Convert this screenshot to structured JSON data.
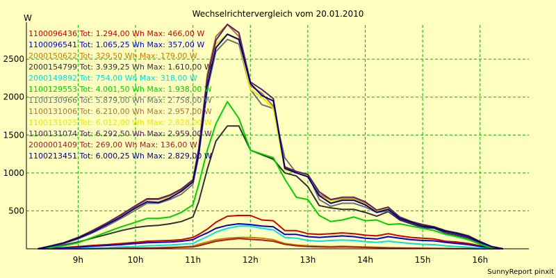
{
  "chart_data": {
    "type": "line",
    "title": "Wechselrichtervergleich vom 20.01.2010",
    "ylabel": "W",
    "xlabel": "",
    "credit": "SunnyReport pinxit",
    "grid": true,
    "ylim": [
      0,
      2950
    ],
    "xlim": [
      8.1,
      16.85
    ],
    "y_ticks": [
      500,
      1000,
      1500,
      2000,
      2500
    ],
    "x_ticks": [
      {
        "label": "9h",
        "value": 9
      },
      {
        "label": "10h",
        "value": 10
      },
      {
        "label": "11h",
        "value": 11
      },
      {
        "label": "12h",
        "value": 12
      },
      {
        "label": "13h",
        "value": 13
      },
      {
        "label": "14h",
        "value": 14
      },
      {
        "label": "15h",
        "value": 15
      },
      {
        "label": "16h",
        "value": 16
      }
    ],
    "x": [
      8.3,
      8.5,
      8.75,
      9.0,
      9.25,
      9.5,
      9.75,
      10.0,
      10.2,
      10.4,
      10.6,
      10.8,
      11.0,
      11.1,
      11.25,
      11.4,
      11.6,
      11.8,
      12.0,
      12.2,
      12.4,
      12.6,
      12.8,
      13.0,
      13.2,
      13.4,
      13.6,
      13.8,
      14.0,
      14.2,
      14.4,
      14.6,
      14.8,
      15.0,
      15.2,
      15.4,
      15.6,
      15.8,
      16.0,
      16.2,
      16.4
    ],
    "series": [
      {
        "name": "1100096436",
        "legend": "1100096436 Tot: 1.294,00 Wh Max: 466,00 W",
        "color": "#cc0000",
        "values": [
          0,
          5,
          15,
          30,
          45,
          55,
          70,
          85,
          100,
          105,
          110,
          120,
          150,
          190,
          260,
          350,
          430,
          440,
          440,
          380,
          370,
          240,
          240,
          200,
          190,
          200,
          210,
          200,
          180,
          170,
          200,
          170,
          150,
          140,
          130,
          100,
          90,
          70,
          40,
          10,
          0
        ]
      },
      {
        "name": "1100096541",
        "legend": "1100096541 Tot: 1.065,25 Wh Max: 357,00 W",
        "color": "#0000cc",
        "values": [
          0,
          3,
          10,
          20,
          35,
          45,
          55,
          70,
          80,
          85,
          90,
          100,
          120,
          160,
          210,
          270,
          310,
          330,
          320,
          300,
          290,
          190,
          190,
          160,
          150,
          160,
          170,
          160,
          140,
          130,
          160,
          140,
          120,
          110,
          105,
          85,
          70,
          55,
          30,
          8,
          0
        ]
      },
      {
        "name": "2000150622",
        "legend": "2000150622 Tot: 329,50 Wh Max: 179,00 W",
        "color": "#cc7a00",
        "values": [
          0,
          0,
          0,
          0,
          3,
          5,
          8,
          10,
          12,
          15,
          20,
          25,
          35,
          60,
          90,
          120,
          140,
          150,
          150,
          140,
          120,
          70,
          50,
          40,
          35,
          30,
          35,
          30,
          25,
          20,
          15,
          12,
          10,
          8,
          6,
          5,
          3,
          2,
          0,
          0,
          0
        ]
      },
      {
        "name": "2000154799",
        "legend": "2000154799 Tot: 3.939,25 Wh Max: 1.610,00 W",
        "color": "#303030",
        "values": [
          0,
          20,
          50,
          90,
          140,
          190,
          240,
          280,
          300,
          310,
          330,
          360,
          420,
          620,
          1050,
          1420,
          1620,
          1620,
          1300,
          1240,
          1180,
          1000,
          960,
          820,
          570,
          540,
          520,
          520,
          480,
          430,
          490,
          380,
          330,
          280,
          270,
          210,
          180,
          140,
          80,
          25,
          0
        ]
      },
      {
        "name": "2000149892",
        "legend": "2000149892 Tot: 754,00 Wh Max: 318,00 W",
        "color": "#00e0e0",
        "values": [
          0,
          0,
          0,
          5,
          10,
          15,
          25,
          30,
          40,
          45,
          50,
          60,
          70,
          110,
          160,
          220,
          270,
          300,
          300,
          270,
          250,
          150,
          140,
          110,
          100,
          110,
          115,
          110,
          95,
          85,
          100,
          85,
          70,
          60,
          55,
          40,
          30,
          20,
          10,
          0,
          0
        ]
      },
      {
        "name": "1100129553",
        "legend": "1100129553 Tot: 4.001,50 Wh Max: 1.938,00 W",
        "color": "#00d000",
        "values": [
          0,
          15,
          40,
          80,
          150,
          220,
          290,
          350,
          400,
          400,
          420,
          480,
          580,
          850,
          1300,
          1650,
          1940,
          1720,
          1300,
          1250,
          1200,
          920,
          680,
          650,
          440,
          360,
          380,
          420,
          370,
          380,
          320,
          330,
          300,
          270,
          240,
          190,
          160,
          120,
          60,
          15,
          0
        ]
      },
      {
        "name": "1100130966",
        "legend": "1100130966 Tot: 5.879,00 Wh Max: 2.758,00 W",
        "color": "#707070",
        "values": [
          0,
          30,
          70,
          130,
          210,
          300,
          400,
          510,
          600,
          600,
          650,
          720,
          850,
          1220,
          2100,
          2600,
          2760,
          2700,
          2100,
          1900,
          1850,
          1200,
          1000,
          980,
          650,
          560,
          600,
          600,
          550,
          480,
          500,
          410,
          360,
          310,
          280,
          230,
          200,
          160,
          90,
          30,
          0
        ]
      },
      {
        "name": "1100131006",
        "legend": "1100131006 Tot: 6.210,00 Wh Max: 2.957,00 W",
        "color": "#b07040",
        "values": [
          0,
          35,
          80,
          150,
          240,
          340,
          440,
          560,
          650,
          650,
          700,
          780,
          900,
          1300,
          2300,
          2800,
          2957,
          2800,
          2150,
          2050,
          1880,
          1060,
          1010,
          970,
          720,
          640,
          660,
          660,
          600,
          500,
          540,
          420,
          360,
          320,
          290,
          240,
          210,
          170,
          95,
          30,
          0
        ]
      },
      {
        "name": "1100131025",
        "legend": "1100131025 Tot: 6.012,00 Wh Max: 2.828,00 W",
        "color": "#e8e800",
        "values": [
          0,
          32,
          75,
          140,
          220,
          320,
          420,
          530,
          620,
          620,
          680,
          750,
          880,
          1260,
          2200,
          2700,
          2828,
          2750,
          2100,
          2000,
          1850,
          1040,
          1000,
          960,
          700,
          630,
          650,
          650,
          590,
          490,
          530,
          410,
          350,
          310,
          285,
          235,
          205,
          165,
          92,
          28,
          0
        ]
      },
      {
        "name": "1100131074",
        "legend": "1100131074 Tot: 6.292,50 Wh Max: 2.959,00 W",
        "color": "#602060",
        "values": [
          0,
          35,
          80,
          150,
          240,
          340,
          450,
          570,
          660,
          660,
          710,
          790,
          910,
          1320,
          2250,
          2750,
          2959,
          2850,
          2200,
          2100,
          1980,
          1080,
          1020,
          980,
          750,
          650,
          680,
          680,
          620,
          510,
          550,
          420,
          360,
          320,
          290,
          240,
          210,
          170,
          95,
          30,
          0
        ]
      },
      {
        "name": "2000001409",
        "legend": "2000001409 Tot: 269,00 Wh Max: 136,00 W",
        "color": "#a02020",
        "values": [
          0,
          0,
          0,
          0,
          2,
          4,
          6,
          8,
          10,
          12,
          15,
          20,
          25,
          40,
          70,
          100,
          120,
          136,
          125,
          115,
          100,
          60,
          40,
          30,
          25,
          22,
          25,
          22,
          18,
          15,
          12,
          10,
          8,
          6,
          5,
          4,
          3,
          2,
          0,
          0,
          0
        ]
      },
      {
        "name": "1100213451",
        "legend": "1100213451 Tot: 6.000,25 Wh Max: 2.829,00 W",
        "color": "#000080",
        "values": [
          0,
          30,
          75,
          140,
          220,
          320,
          420,
          540,
          620,
          610,
          670,
          760,
          880,
          1250,
          2150,
          2650,
          2829,
          2760,
          2180,
          2020,
          1950,
          1060,
          1000,
          950,
          700,
          600,
          640,
          640,
          580,
          480,
          520,
          400,
          350,
          300,
          280,
          230,
          200,
          160,
          90,
          28,
          0
        ]
      }
    ]
  }
}
